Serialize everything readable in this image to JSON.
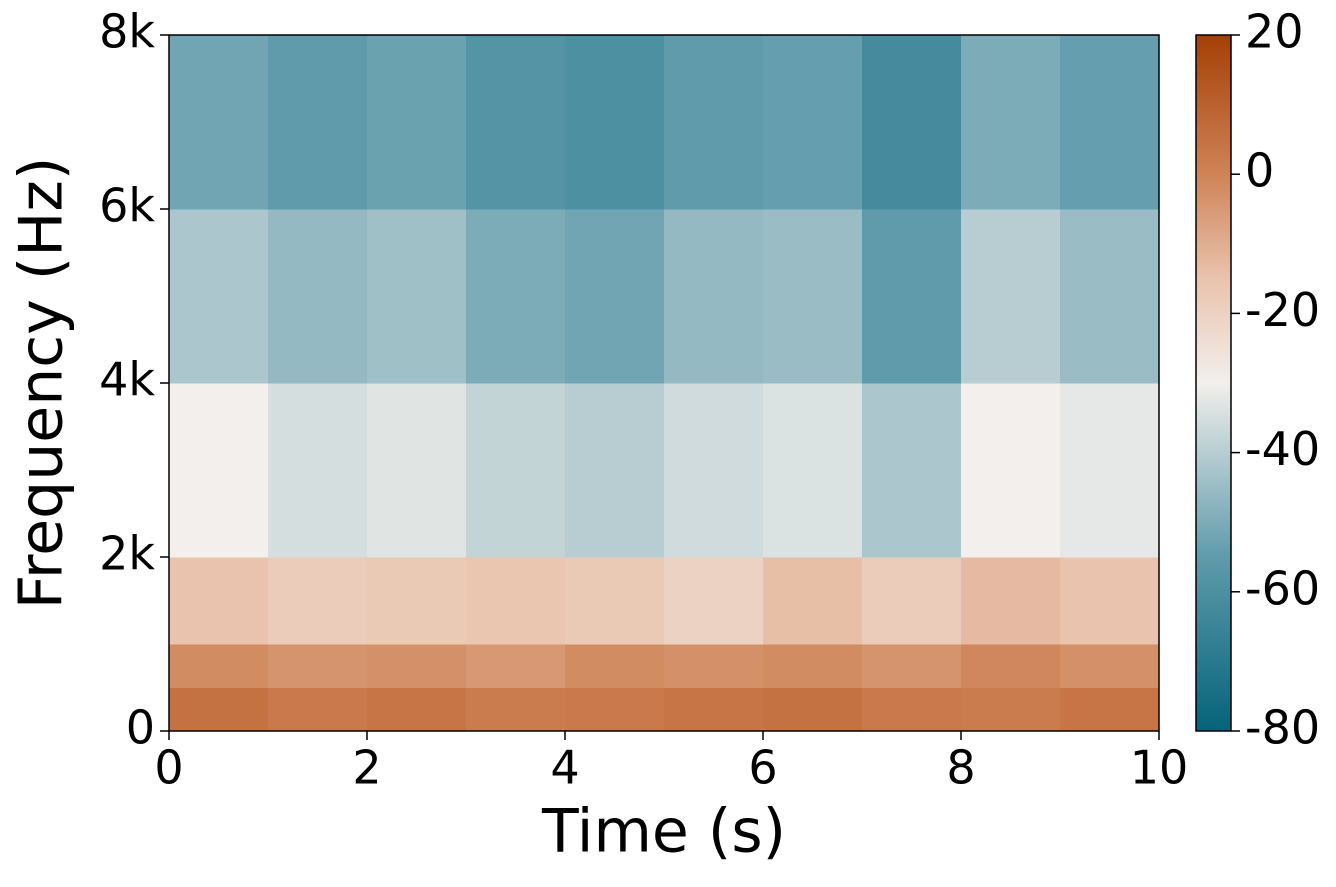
{
  "chart_data": {
    "type": "spectrogram",
    "xlabel": "Time (s)",
    "ylabel": "Frequency (Hz)",
    "x_bins": [
      0,
      1,
      2,
      3,
      4,
      5,
      6,
      7,
      8,
      9,
      10
    ],
    "y_bins": [
      0,
      500,
      1000,
      2000,
      4000,
      6000,
      8000
    ],
    "values": [
      [
        5,
        3,
        4,
        2,
        3,
        4,
        5,
        3,
        2,
        4
      ],
      [
        -2,
        -4,
        -3,
        -5,
        -2,
        -3,
        -2,
        -4,
        -1,
        -3
      ],
      [
        -15,
        -18,
        -17,
        -16,
        -17,
        -20,
        -14,
        -18,
        -13,
        -15
      ],
      [
        -30,
        -35,
        -33,
        -38,
        -40,
        -36,
        -34,
        -42,
        -30,
        -32
      ],
      [
        -42,
        -46,
        -44,
        -50,
        -52,
        -46,
        -45,
        -55,
        -40,
        -45
      ],
      [
        -52,
        -55,
        -53,
        -58,
        -60,
        -55,
        -54,
        -62,
        -50,
        -54
      ]
    ],
    "xlim": [
      0,
      10
    ],
    "xticks": [
      0,
      2,
      4,
      6,
      8,
      10
    ],
    "ylim": [
      0,
      8000
    ],
    "yticks": [
      0,
      {
        "value": 2000,
        "label": "2k"
      },
      {
        "value": 4000,
        "label": "4k"
      },
      {
        "value": 6000,
        "label": "6k"
      },
      {
        "value": 8000,
        "label": "8k"
      }
    ],
    "clim": [
      -80,
      20
    ],
    "cticks": [
      20,
      0,
      -20,
      -40,
      -60,
      -80
    ],
    "colormap": [
      {
        "value": -80,
        "color": "#05637a"
      },
      {
        "value": -55,
        "color": "#5f9bab"
      },
      {
        "value": -30,
        "color": "#f2efec"
      },
      {
        "value": -15,
        "color": "#e9c3ad"
      },
      {
        "value": 0,
        "color": "#cf8357"
      },
      {
        "value": 20,
        "color": "#a53f05"
      }
    ]
  }
}
